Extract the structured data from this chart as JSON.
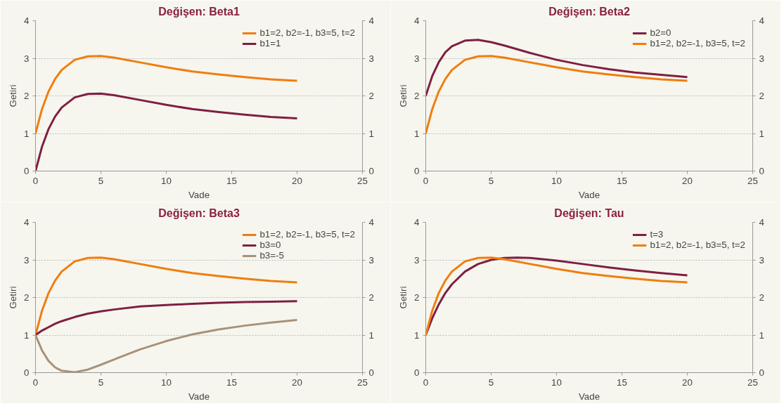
{
  "chart_data": [
    {
      "type": "line",
      "title": "Değişen: Beta1",
      "xlabel": "Vade",
      "ylabel": "Getiri",
      "x": [
        0,
        0.5,
        1,
        1.5,
        2,
        3,
        4,
        5,
        6,
        8,
        10,
        12,
        14,
        16,
        18,
        20
      ],
      "xlim": [
        0,
        25
      ],
      "xticks": [
        0,
        5,
        10,
        15,
        20,
        25
      ],
      "ylim": [
        0,
        4
      ],
      "yticks": [
        0,
        1,
        2,
        3,
        4
      ],
      "y2lim": [
        0,
        4
      ],
      "y2ticks": [
        0,
        1,
        2,
        3,
        4
      ],
      "grid": "y",
      "legend": "top right",
      "line_style": "solid",
      "series": [
        {
          "name": "b1=2, b2=-1, b3=5, t=2",
          "color": "#f07d0e",
          "values": [
            1,
            1.65,
            2.12,
            2.45,
            2.69,
            2.96,
            3.05,
            3.06,
            3.02,
            2.89,
            2.76,
            2.65,
            2.57,
            2.5,
            2.44,
            2.4
          ]
        },
        {
          "name": "b1=1",
          "color": "#7f1f42",
          "values": [
            0,
            0.65,
            1.12,
            1.45,
            1.69,
            1.96,
            2.05,
            2.06,
            2.02,
            1.89,
            1.76,
            1.65,
            1.57,
            1.5,
            1.44,
            1.4
          ]
        }
      ]
    },
    {
      "type": "line",
      "title": "Değişen: Beta2",
      "xlabel": "Vade",
      "ylabel": "Getiri",
      "x": [
        0,
        0.5,
        1,
        1.5,
        2,
        3,
        4,
        5,
        6,
        8,
        10,
        12,
        14,
        16,
        18,
        20
      ],
      "xlim": [
        0,
        25
      ],
      "xticks": [
        0,
        5,
        10,
        15,
        20,
        25
      ],
      "ylim": [
        0,
        4
      ],
      "yticks": [
        0,
        1,
        2,
        3,
        4
      ],
      "y2lim": [
        0,
        4
      ],
      "y2ticks": [
        0,
        1,
        2,
        3,
        4
      ],
      "grid": "y",
      "legend": "top right",
      "line_style": "solid",
      "series": [
        {
          "name": "b2=0",
          "color": "#7f1f42",
          "values": [
            2,
            2.53,
            2.9,
            3.16,
            3.32,
            3.47,
            3.49,
            3.43,
            3.34,
            3.14,
            2.96,
            2.82,
            2.71,
            2.62,
            2.56,
            2.5
          ]
        },
        {
          "name": "b1=2, b2=-1, b3=5, t=2",
          "color": "#f07d0e",
          "values": [
            1,
            1.65,
            2.12,
            2.45,
            2.69,
            2.96,
            3.05,
            3.06,
            3.02,
            2.89,
            2.76,
            2.65,
            2.57,
            2.5,
            2.44,
            2.4
          ]
        }
      ]
    },
    {
      "type": "line",
      "title": "Değişen: Beta3",
      "xlabel": "Vade",
      "ylabel": "Getiri",
      "x": [
        0,
        0.5,
        1,
        1.5,
        2,
        3,
        4,
        5,
        6,
        8,
        10,
        12,
        14,
        16,
        18,
        20
      ],
      "xlim": [
        0,
        25
      ],
      "xticks": [
        0,
        5,
        10,
        15,
        20,
        25
      ],
      "ylim": [
        0,
        4
      ],
      "yticks": [
        0,
        1,
        2,
        3,
        4
      ],
      "y2lim": [
        0,
        4
      ],
      "y2ticks": [
        0,
        1,
        2,
        3,
        4
      ],
      "grid": "y",
      "legend": "top right",
      "line_style": "solid",
      "series": [
        {
          "name": "b1=2, b2=-1, b3=5, t=2",
          "color": "#f07d0e",
          "values": [
            1,
            1.65,
            2.12,
            2.45,
            2.69,
            2.96,
            3.05,
            3.06,
            3.02,
            2.89,
            2.76,
            2.65,
            2.57,
            2.5,
            2.44,
            2.4
          ]
        },
        {
          "name": "b3=0",
          "color": "#7f1f42",
          "values": [
            1,
            1.12,
            1.21,
            1.3,
            1.37,
            1.48,
            1.57,
            1.63,
            1.68,
            1.76,
            1.8,
            1.83,
            1.86,
            1.88,
            1.89,
            1.9
          ]
        },
        {
          "name": "b3=-5",
          "color": "#a8927a",
          "values": [
            1,
            0.59,
            0.31,
            0.14,
            0.05,
            0.01,
            0.08,
            0.21,
            0.35,
            0.62,
            0.84,
            1.02,
            1.15,
            1.25,
            1.33,
            1.4
          ]
        }
      ]
    },
    {
      "type": "line",
      "title": "Değişen: Tau",
      "xlabel": "Vade",
      "ylabel": "Getiri",
      "x": [
        0,
        0.5,
        1,
        1.5,
        2,
        3,
        4,
        5,
        6,
        7,
        8,
        10,
        12,
        14,
        16,
        18,
        20
      ],
      "xlim": [
        0,
        25
      ],
      "xticks": [
        0,
        5,
        10,
        15,
        20,
        25
      ],
      "ylim": [
        0,
        4
      ],
      "yticks": [
        0,
        1,
        2,
        3,
        4
      ],
      "y2lim": [
        0,
        4
      ],
      "y2ticks": [
        0,
        1,
        2,
        3,
        4
      ],
      "grid": "y",
      "legend": "top right",
      "line_style": "solid",
      "series": [
        {
          "name": "t=3",
          "color": "#7f1f42",
          "values": [
            1,
            1.45,
            1.82,
            2.12,
            2.35,
            2.69,
            2.89,
            3.0,
            3.05,
            3.06,
            3.05,
            2.98,
            2.89,
            2.8,
            2.72,
            2.65,
            2.59
          ]
        },
        {
          "name": "b1=2, b2=-1, b3=5, t=2",
          "color": "#f07d0e",
          "x": [
            0,
            0.5,
            1,
            1.5,
            2,
            3,
            4,
            5,
            6,
            8,
            10,
            12,
            14,
            16,
            18,
            20
          ],
          "values": [
            1,
            1.65,
            2.12,
            2.45,
            2.69,
            2.96,
            3.05,
            3.06,
            3.02,
            2.89,
            2.76,
            2.65,
            2.57,
            2.5,
            2.44,
            2.4
          ]
        }
      ]
    }
  ]
}
